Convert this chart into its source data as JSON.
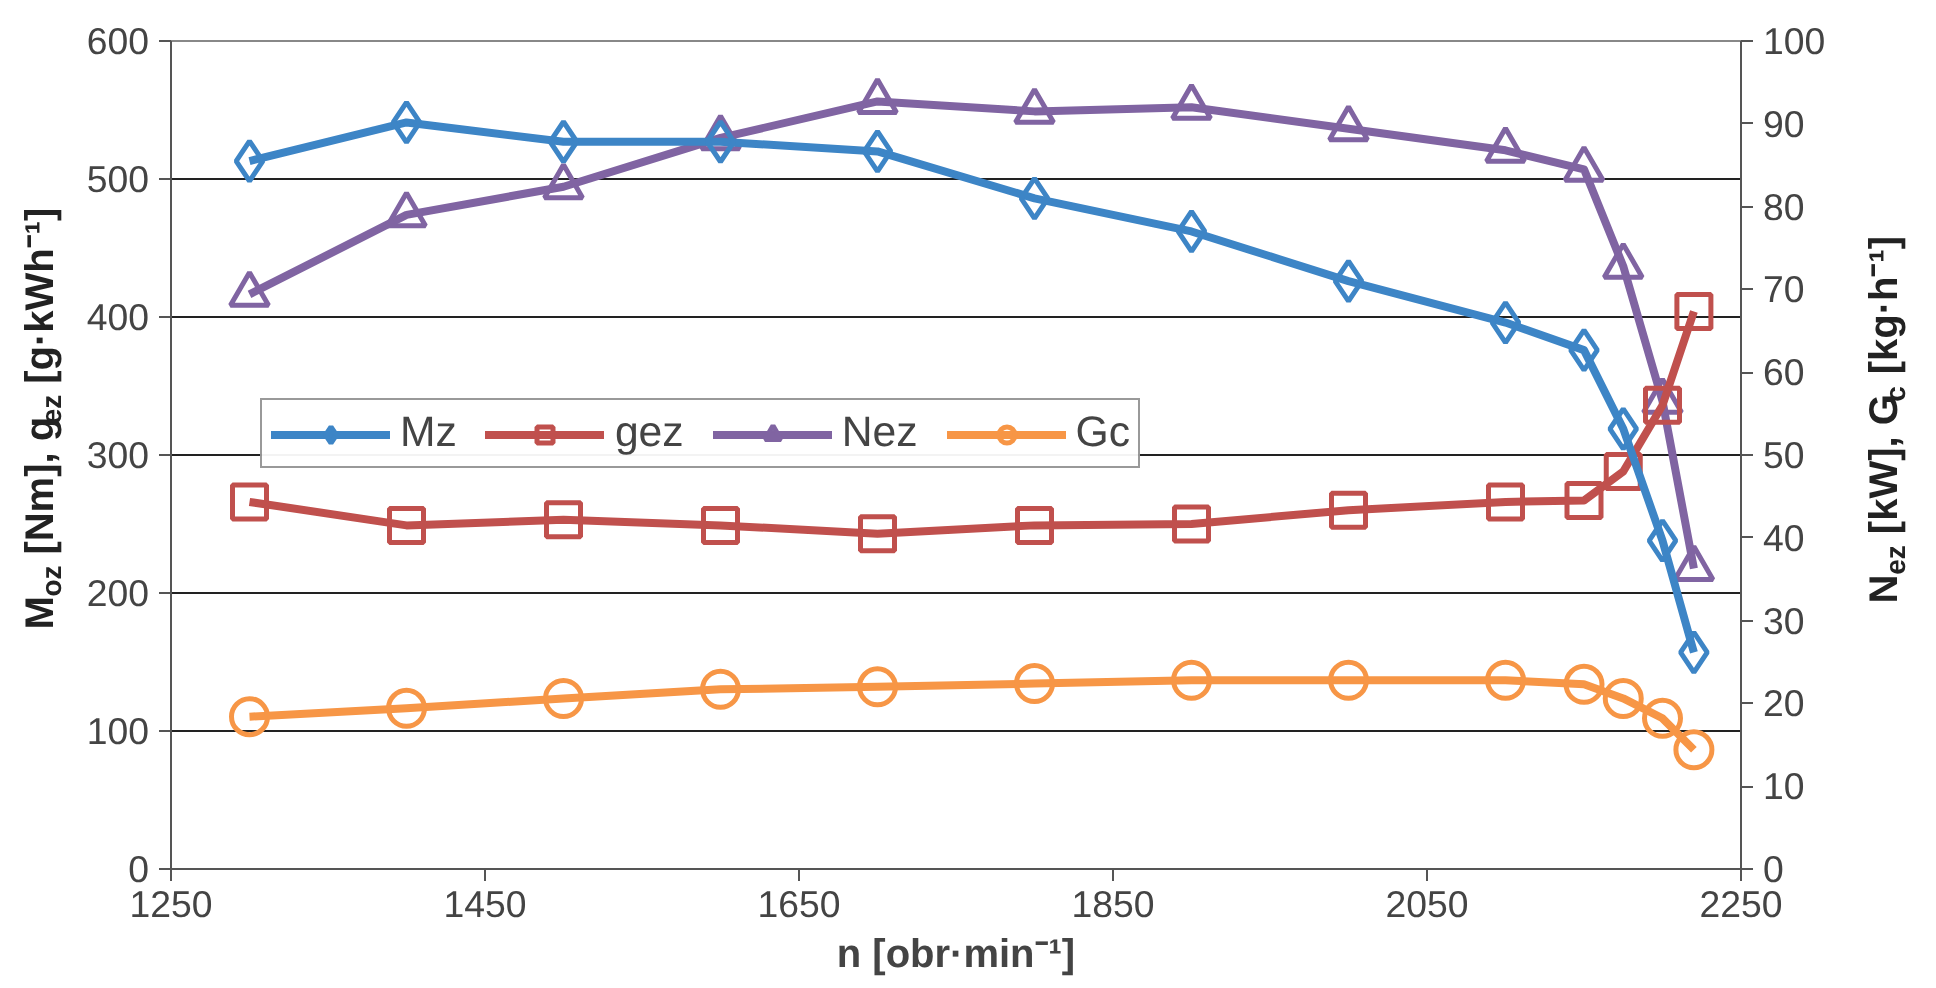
{
  "chart_data": {
    "type": "line",
    "xlabel": "n [obr·min⁻¹]",
    "ylabel": "M$_{oz}$ [Nm], g$_{ez}$ [g·kWh⁻¹]",
    "y2label": "N$_{ez}$ [kW], G$_{c}$ [kg·h⁻¹]",
    "x": [
      1300,
      1400,
      1500,
      1600,
      1700,
      1800,
      1900,
      2000,
      2100,
      2150,
      2175,
      2200,
      2220
    ],
    "xlim": [
      1250,
      2250
    ],
    "xticks": [
      1250,
      1450,
      1650,
      1850,
      2050,
      2250
    ],
    "ylim": [
      0,
      600
    ],
    "yticks": [
      0,
      100,
      200,
      300,
      400,
      500,
      600
    ],
    "y2lim": [
      0,
      100
    ],
    "y2ticks": [
      0,
      10,
      20,
      30,
      40,
      50,
      60,
      70,
      80,
      90,
      100
    ],
    "grid": "y",
    "legend": "center left",
    "line_style": "solid",
    "series": [
      {
        "name": "Mz",
        "color": "#3d85c6",
        "marker": "diamond",
        "values": [
          513,
          541,
          527,
          527,
          520,
          486,
          462,
          426,
          396,
          376,
          319,
          238,
          157
        ]
      },
      {
        "name": "gez",
        "color": "#c0504d",
        "marker": "square",
        "values": [
          266,
          249,
          253,
          249,
          243,
          249,
          250,
          260,
          266,
          267,
          288,
          336,
          404
        ]
      },
      {
        "name": "Nez",
        "color": "#8064a2",
        "marker": "triangle",
        "axis": "y2",
        "values": [
          69.4,
          79,
          82.4,
          88.3,
          92.7,
          91.5,
          92,
          89.4,
          86.8,
          84.5,
          72.8,
          56.5,
          36.3
        ]
      },
      {
        "name": "Gc",
        "color": "#f79646",
        "marker": "circle",
        "axis": "y2",
        "values": [
          18.4,
          19.4,
          20.6,
          21.7,
          22.0,
          22.4,
          22.8,
          22.8,
          22.8,
          22.3,
          20.6,
          18.2,
          14.4
        ]
      }
    ]
  }
}
